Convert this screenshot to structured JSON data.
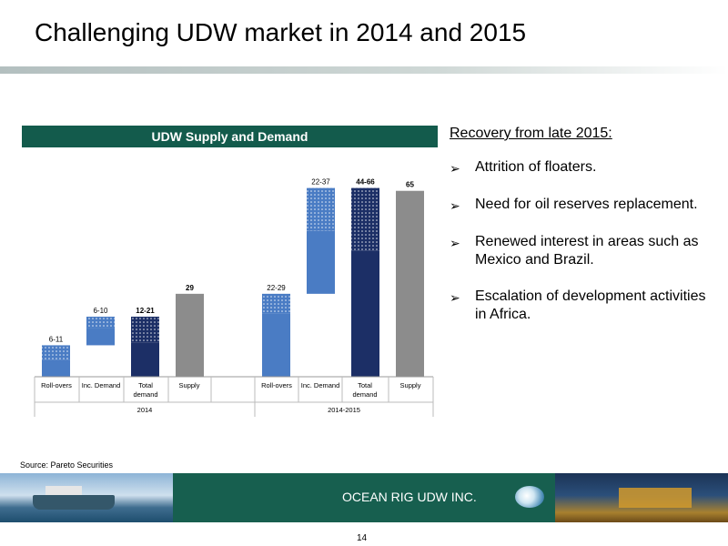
{
  "slide": {
    "title": "Challenging UDW market in 2014 and 2015",
    "source": "Source: Pareto Securities",
    "page_number": "14"
  },
  "panel": {
    "title": "UDW Supply and Demand"
  },
  "recovery": {
    "heading": "Recovery from late 2015:",
    "bullets": [
      "Attrition of floaters.",
      "Need for oil reserves replacement.",
      "Renewed interest in areas such as Mexico and Brazil.",
      "Escalation of development activities in Africa."
    ]
  },
  "footer": {
    "brand": "OCEAN RIG UDW INC."
  },
  "colors": {
    "dark_green": "#135b4c",
    "bar_light_blue": "#4a7cc4",
    "bar_dark_blue": "#1c2f66",
    "bar_grey": "#8c8c8c"
  },
  "chart_data": {
    "type": "bar",
    "title": "UDW Supply and Demand",
    "yscale_max": 70,
    "bars": [
      {
        "category": "Roll-overs",
        "group": "2014",
        "kind": "range",
        "color": "light",
        "base": 0,
        "low": 6,
        "high": 11,
        "label": "6-11"
      },
      {
        "category": "Inc. Demand",
        "group": "2014",
        "kind": "range",
        "color": "light",
        "base": 11,
        "low": 6,
        "high": 10,
        "label": "6-10"
      },
      {
        "category": "Total demand",
        "group": "2014",
        "kind": "range",
        "color": "dark",
        "base": 0,
        "low": 12,
        "high": 21,
        "label": "12-21"
      },
      {
        "category": "Supply",
        "group": "2014",
        "kind": "solid",
        "color": "grey",
        "value": 29,
        "label": "29"
      },
      {
        "category": "Roll-overs",
        "group": "2014-2015",
        "kind": "range",
        "color": "light",
        "base": 0,
        "low": 22,
        "high": 29,
        "label": "22-29"
      },
      {
        "category": "Inc. Demand",
        "group": "2014-2015",
        "kind": "range",
        "color": "light",
        "base": 29,
        "low": 22,
        "high": 37,
        "label": "22-37"
      },
      {
        "category": "Total demand",
        "group": "2014-2015",
        "kind": "range",
        "color": "dark",
        "base": 0,
        "low": 44,
        "high": 66,
        "label": "44-66"
      },
      {
        "category": "Supply",
        "group": "2014-2015",
        "kind": "solid",
        "color": "grey",
        "value": 65,
        "label": "65"
      }
    ],
    "groups": [
      "2014",
      "2014-2015"
    ]
  }
}
